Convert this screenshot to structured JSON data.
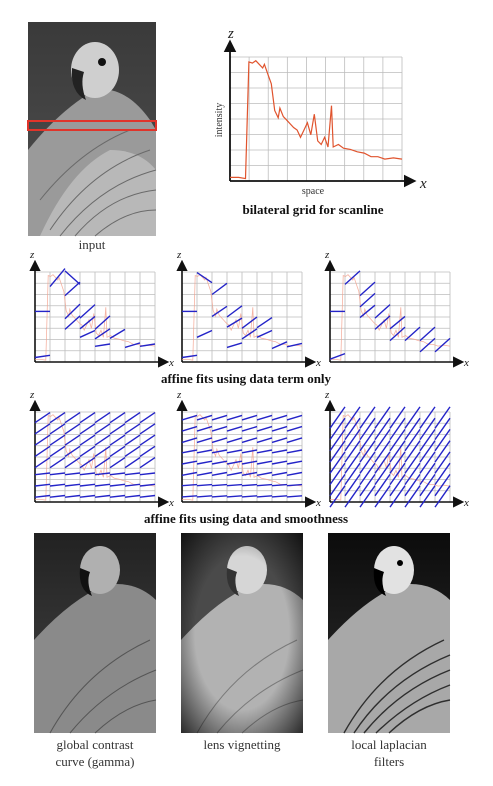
{
  "figure": {
    "input_caption": "input",
    "scanline_plot": {
      "title": "bilateral grid for scanline",
      "axis_z": "z",
      "axis_x": "x",
      "ylabel": "intensity",
      "xlabel": "space"
    },
    "row_data_term": {
      "caption": "affine fits using data term only",
      "axis_z": "z",
      "axis_x": "x"
    },
    "row_smoothness": {
      "caption": "affine fits using data and smoothness",
      "axis_z": "z",
      "axis_x": "x"
    },
    "results": [
      {
        "caption_line1": "global contrast",
        "caption_line2": "curve (gamma)"
      },
      {
        "caption_line1": "lens vignetting",
        "caption_line2": ""
      },
      {
        "caption_line1": "local laplacian",
        "caption_line2": "filters"
      }
    ],
    "colors": {
      "scanline": "#e0542e",
      "fit_line": "#2424c8",
      "grid": "#bdbdbd",
      "highlight_box": "#e0342a"
    }
  }
}
